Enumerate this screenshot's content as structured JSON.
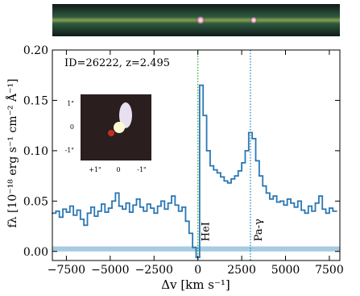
{
  "chart_data": {
    "type": "step",
    "annotation": "ID=26222, z=2.495",
    "x_label": "Δv [km s⁻¹]",
    "y_label": "fλ [10⁻¹⁸ erg s⁻¹ cm⁻² Å⁻¹]",
    "xlim": [
      -8300,
      8100
    ],
    "ylim": [
      -0.009,
      0.2
    ],
    "xticks": [
      {
        "value": -7500,
        "label": "−7500"
      },
      {
        "value": -5000,
        "label": "−5000"
      },
      {
        "value": -2500,
        "label": "−2500"
      },
      0,
      2500,
      5000,
      7500
    ],
    "yticks": [
      {
        "value": 0,
        "label": "0.00"
      },
      {
        "value": 0.05,
        "label": "0.05"
      },
      {
        "value": 0.1,
        "label": "0.10"
      },
      {
        "value": 0.15,
        "label": "0.15"
      },
      {
        "value": 0.2,
        "label": "0.20"
      }
    ],
    "x": [
      -8200,
      -8000,
      -7800,
      -7600,
      -7400,
      -7200,
      -7000,
      -6800,
      -6600,
      -6400,
      -6200,
      -6000,
      -5800,
      -5600,
      -5400,
      -5200,
      -5000,
      -4800,
      -4600,
      -4400,
      -4200,
      -4000,
      -3800,
      -3600,
      -3400,
      -3200,
      -3000,
      -2800,
      -2600,
      -2400,
      -2200,
      -2000,
      -1800,
      -1600,
      -1400,
      -1200,
      -1000,
      -800,
      -600,
      -400,
      -200,
      0,
      200,
      400,
      600,
      800,
      1000,
      1200,
      1400,
      1600,
      1800,
      2000,
      2200,
      2400,
      2600,
      2800,
      3000,
      3200,
      3400,
      3600,
      3800,
      4000,
      4200,
      4400,
      4600,
      4800,
      5000,
      5200,
      5400,
      5600,
      5800,
      6000,
      6200,
      6400,
      6600,
      6800,
      7000,
      7200,
      7400,
      7600,
      7800
    ],
    "series": [
      {
        "color": "#2a77b4",
        "values": [
          0.038,
          0.04,
          0.034,
          0.042,
          0.039,
          0.045,
          0.036,
          0.041,
          0.032,
          0.026,
          0.038,
          0.044,
          0.035,
          0.04,
          0.047,
          0.039,
          0.043,
          0.05,
          0.058,
          0.045,
          0.042,
          0.048,
          0.039,
          0.046,
          0.052,
          0.044,
          0.04,
          0.047,
          0.043,
          0.038,
          0.045,
          0.05,
          0.042,
          0.048,
          0.055,
          0.046,
          0.04,
          0.044,
          0.03,
          0.018,
          0.004,
          -0.006,
          0.165,
          0.135,
          0.1,
          0.085,
          0.081,
          0.078,
          0.074,
          0.07,
          0.068,
          0.072,
          0.075,
          0.08,
          0.088,
          0.1,
          0.118,
          0.112,
          0.09,
          0.075,
          0.065,
          0.058,
          0.052,
          0.055,
          0.049,
          0.05,
          0.046,
          0.052,
          0.048,
          0.044,
          0.05,
          0.041,
          0.038,
          0.045,
          0.04,
          0.048,
          0.055,
          0.042,
          0.038,
          0.043,
          0.04
        ]
      }
    ],
    "shaded_band": {
      "y": [
        0,
        0.005
      ],
      "color": "#a6cbe3"
    },
    "vlines": [
      {
        "x": 0,
        "label": "HeI",
        "color": "#2ca02c"
      },
      {
        "x": 3000,
        "label": "Pa-γ",
        "color": "#1f77b4"
      }
    ],
    "inset": {
      "yticklabels": [
        "1\"",
        "0",
        "-1\""
      ],
      "xticklabels": [
        "+1\"",
        "0",
        "-1\""
      ]
    }
  }
}
